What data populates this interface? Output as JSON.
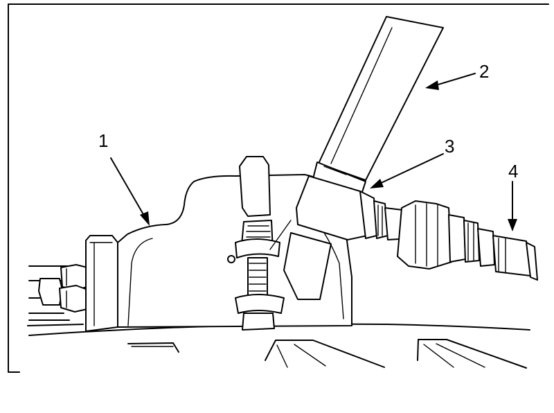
{
  "colors": {
    "ink": "#000000",
    "paper": "#ffffff"
  },
  "callouts": [
    {
      "label": "1"
    },
    {
      "label": "2"
    },
    {
      "label": "3"
    },
    {
      "label": "4"
    }
  ]
}
